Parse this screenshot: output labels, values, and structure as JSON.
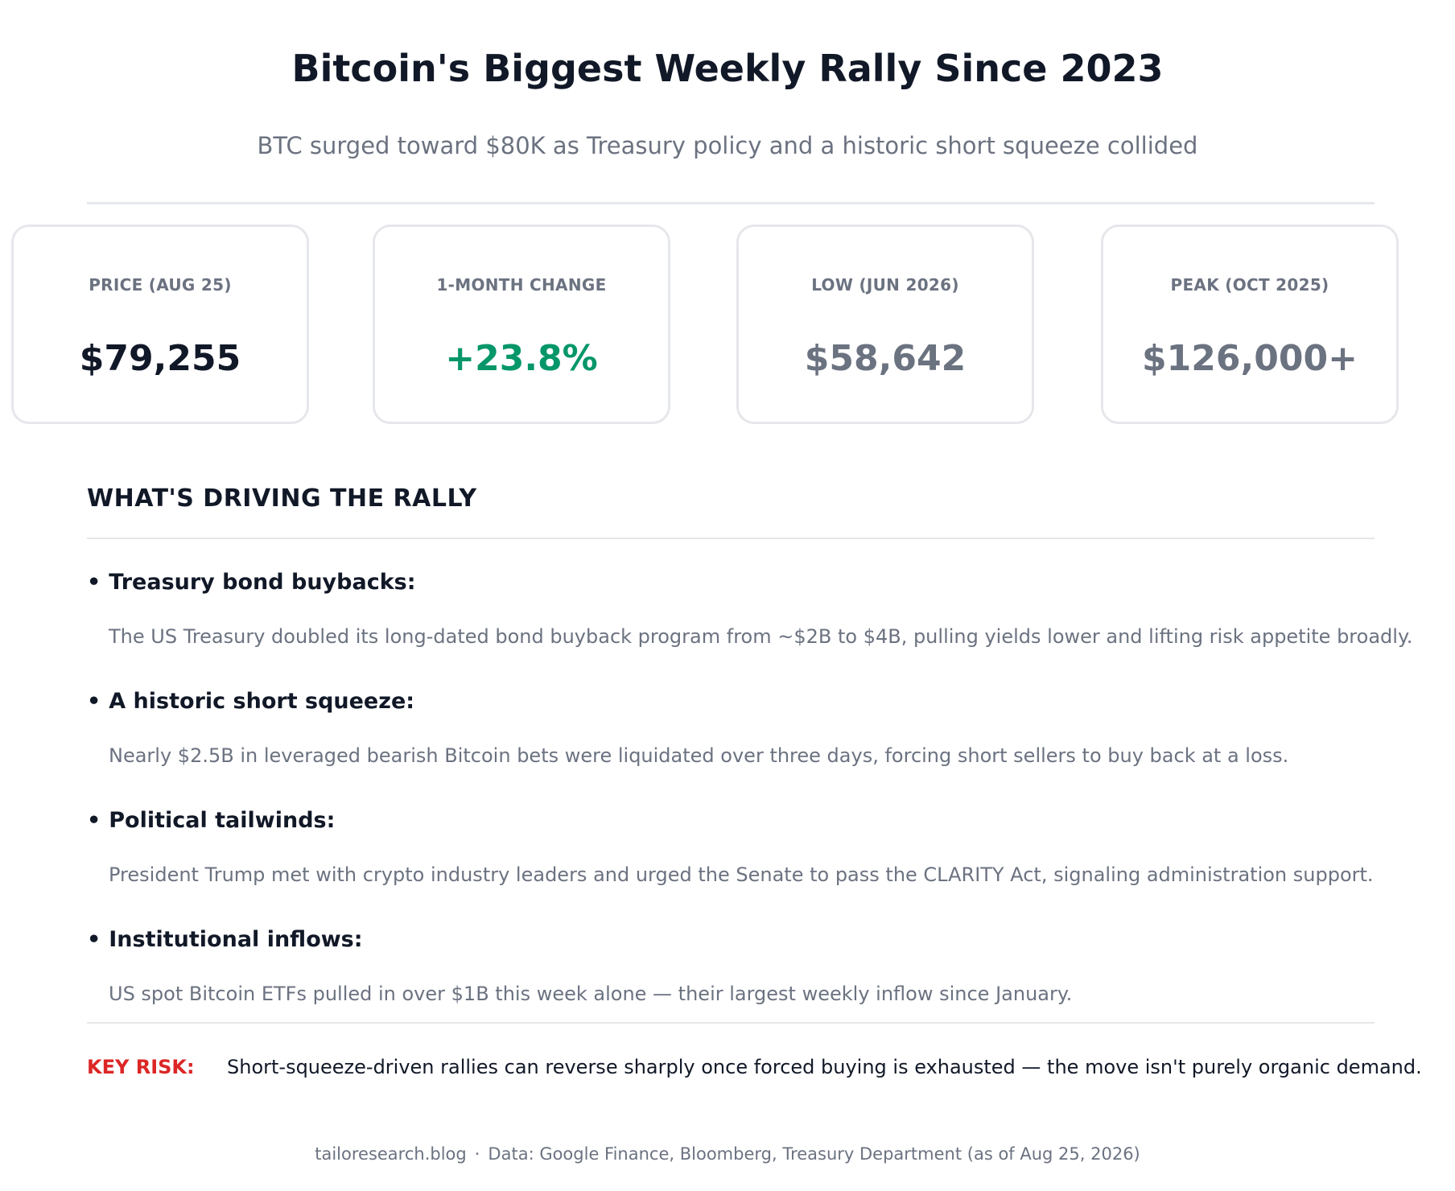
{
  "header": {
    "title": "Bitcoin's Biggest Weekly Rally Since 2023",
    "subtitle": "BTC surged toward $80K as Treasury policy and a historic short squeeze collided"
  },
  "stats": {
    "price": {
      "label": "PRICE (AUG 25)",
      "value": "$79,255",
      "color": "#111827"
    },
    "change": {
      "label": "1-MONTH CHANGE",
      "value": "+23.8%",
      "color": "#059669"
    },
    "low": {
      "label": "LOW (JUN 2026)",
      "value": "$58,642",
      "color": "#6b7280"
    },
    "peak": {
      "label": "PEAK (OCT 2025)",
      "value": "$126,000+",
      "color": "#6b7280"
    }
  },
  "drivers": {
    "heading": "WHAT'S DRIVING THE RALLY",
    "items": [
      {
        "title": "Treasury bond buybacks:",
        "text": "The US Treasury doubled its long-dated bond buyback program from ~$2B to $4B, pulling yields lower and lifting risk appetite broadly."
      },
      {
        "title": "A historic short squeeze:",
        "text": "Nearly $2.5B in leveraged bearish Bitcoin bets were liquidated over three days, forcing short sellers to buy back at a loss."
      },
      {
        "title": "Political tailwinds:",
        "text": "President Trump met with crypto industry leaders and urged the Senate to pass the CLARITY Act, signaling administration support."
      },
      {
        "title": "Institutional inflows:",
        "text": "US spot Bitcoin ETFs pulled in over $1B this week alone — their largest weekly inflow since January."
      }
    ]
  },
  "risk": {
    "label": "KEY RISK:",
    "text": "Short-squeeze-driven rallies can reverse sharply once forced buying is exhausted — the move isn't purely organic demand.",
    "color": "#dc2626"
  },
  "footer": {
    "site": "tailoresearch.blog",
    "separator": "·",
    "source": "Data: Google Finance, Bloomberg, Treasury Department (as of Aug 25, 2026)"
  }
}
